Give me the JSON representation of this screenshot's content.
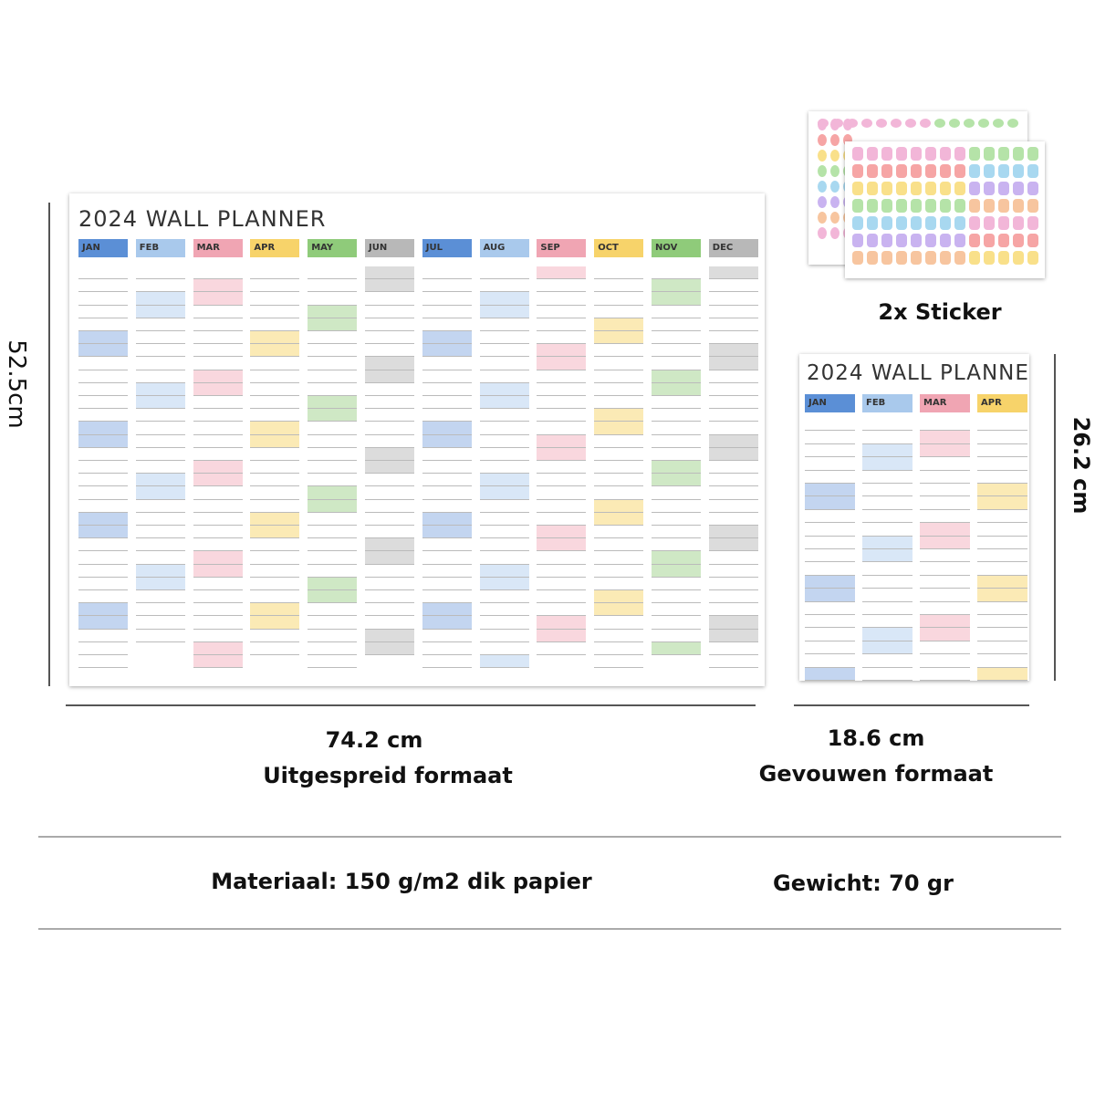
{
  "planner": {
    "title": "2024 WALL PLANNER",
    "months": [
      "JAN",
      "FEB",
      "MAR",
      "APR",
      "MAY",
      "JUN",
      "JUL",
      "AUG",
      "SEP",
      "OCT",
      "NOV",
      "DEC"
    ]
  },
  "sticker_caption": "2x Sticker",
  "dimensions": {
    "height": "52.5cm",
    "width": "74.2 cm",
    "width_caption": "Uitgespreid formaat",
    "folded_width": "18.6 cm",
    "folded_caption": "Gevouwen formaat",
    "folded_height": "26.2 cm"
  },
  "specs": {
    "material": "Materiaal: 150 g/m2 dik papier",
    "weight": "Gewicht: 70 gr"
  }
}
